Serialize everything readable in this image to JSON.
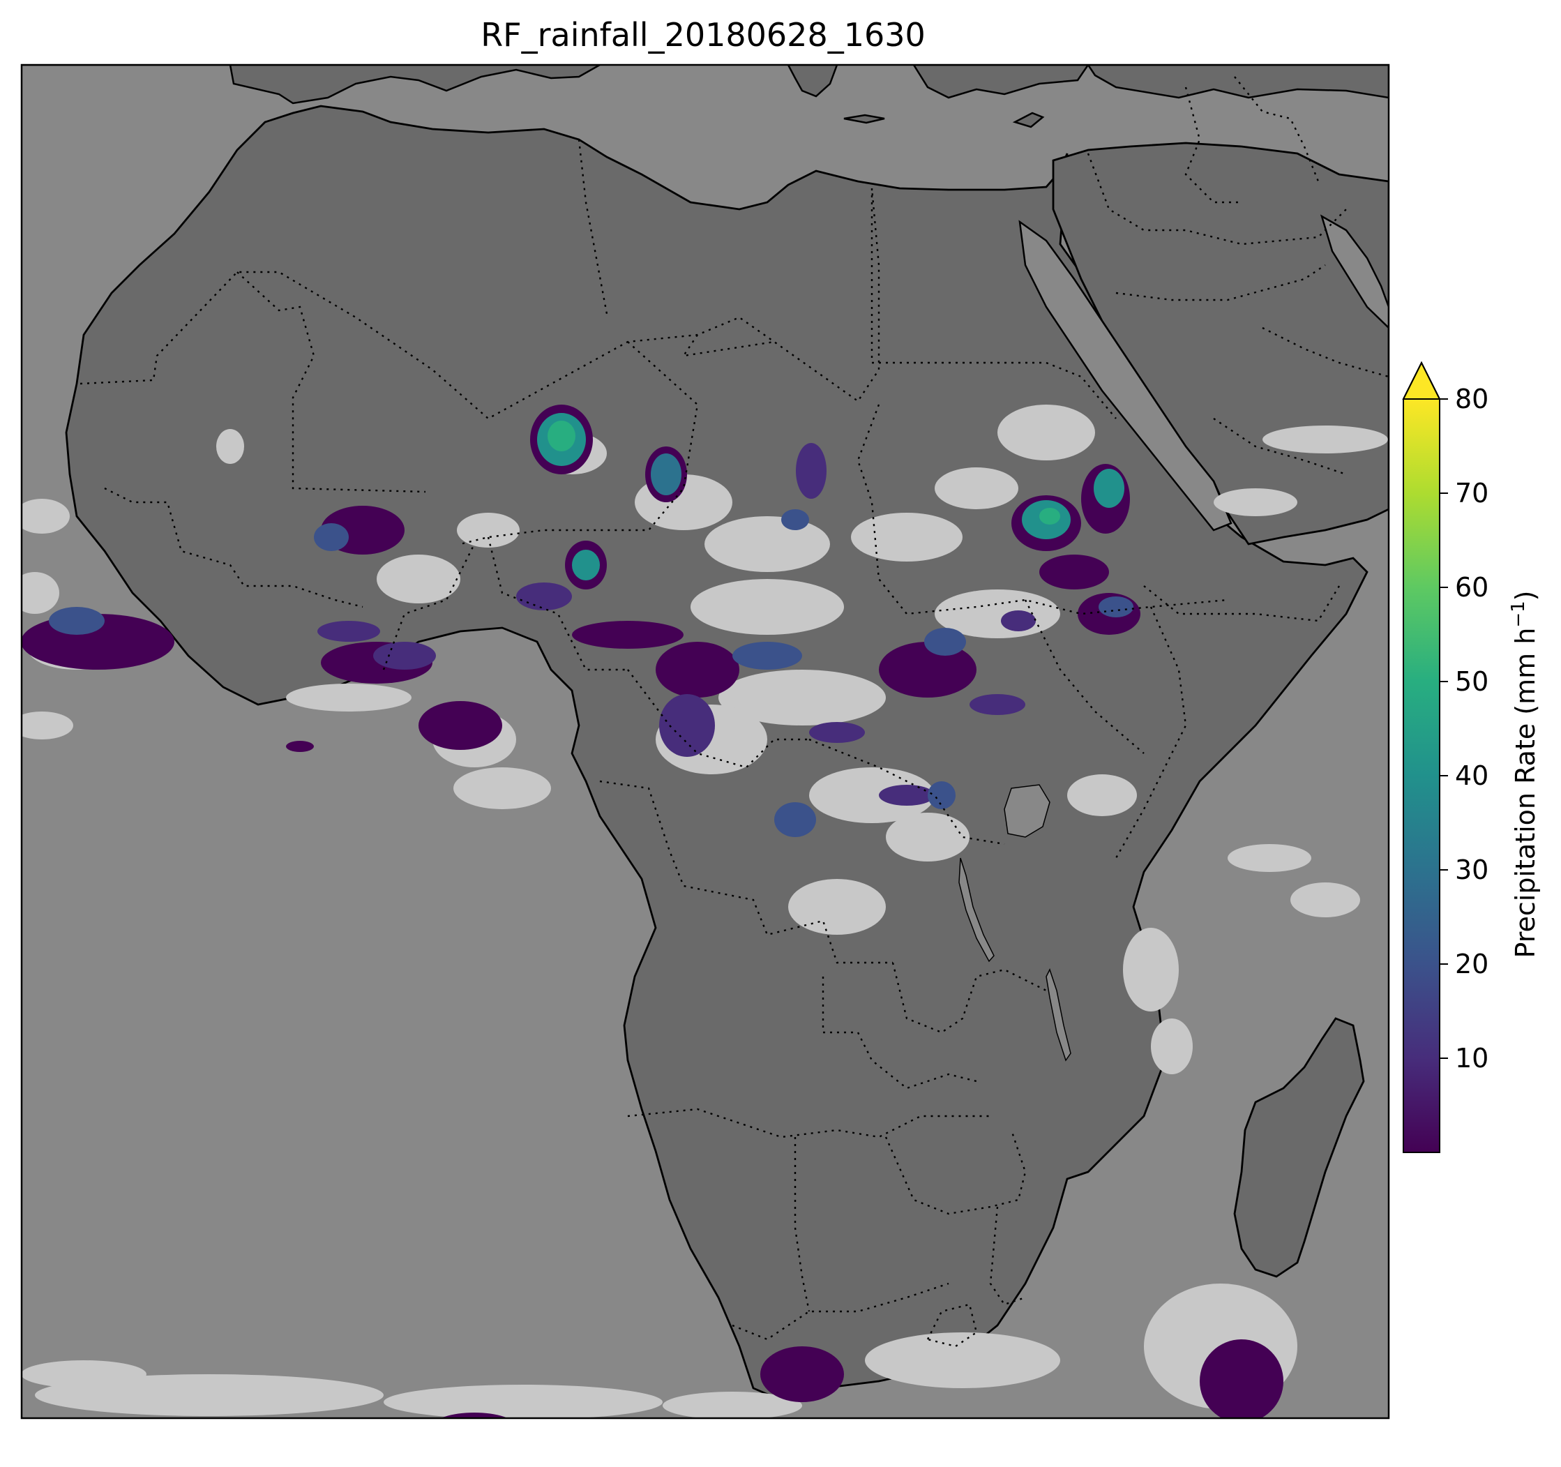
{
  "title": "RF_rainfall_20180628_1630",
  "colorbar": {
    "label": "Precipitation Rate (mm h",
    "label_sup": "−1",
    "label_end": ")",
    "ticks": [
      {
        "value": 10,
        "label": "10"
      },
      {
        "value": 20,
        "label": "20"
      },
      {
        "value": 30,
        "label": "30"
      },
      {
        "value": 40,
        "label": "40"
      },
      {
        "value": 50,
        "label": "50"
      },
      {
        "value": 60,
        "label": "60"
      },
      {
        "value": 70,
        "label": "70"
      },
      {
        "value": 80,
        "label": "80"
      }
    ],
    "range": [
      0,
      80
    ],
    "extend": "max",
    "colormap": "viridis",
    "colors": [
      "#440154",
      "#472d7b",
      "#3b528b",
      "#2c728e",
      "#21918c",
      "#28ae80",
      "#5ec962",
      "#addc30",
      "#fde725"
    ]
  },
  "map": {
    "ocean_color": "#888888",
    "land_color": "#6a6a6a",
    "cloud_color": "#c8c8c8",
    "coastline_color": "#000000",
    "border_style": "dotted"
  }
}
